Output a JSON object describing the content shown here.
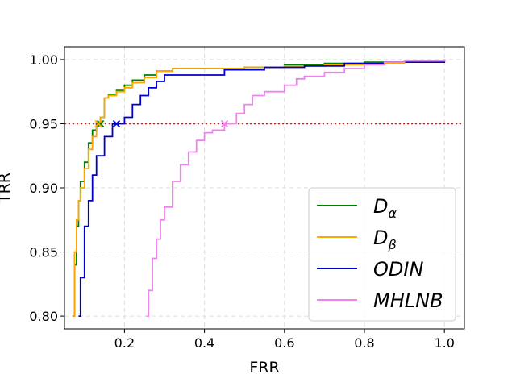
{
  "chart_data": {
    "type": "line",
    "title": "",
    "xlabel": "FRR",
    "ylabel": "TRR",
    "xlim": [
      0.05,
      1.05
    ],
    "ylim": [
      0.79,
      1.01
    ],
    "xticks": [
      0.2,
      0.4,
      0.6,
      0.8,
      1.0
    ],
    "xtick_labels": [
      "0.2",
      "0.4",
      "0.6",
      "0.8",
      "1.0"
    ],
    "yticks": [
      0.8,
      0.85,
      0.9,
      0.95,
      1.0
    ],
    "ytick_labels": [
      "0.80",
      "0.85",
      "0.90",
      "0.95",
      "1.00"
    ],
    "grid": true,
    "legend_position": "lower-right",
    "threshold": {
      "y": 0.95,
      "color": "#ff0000",
      "style": "dotted"
    },
    "series": [
      {
        "name": "D",
        "subscript": "α",
        "color": "#008000",
        "marker": [
          0.14,
          0.95
        ],
        "x": [
          0.07,
          0.075,
          0.08,
          0.085,
          0.09,
          0.1,
          0.11,
          0.12,
          0.13,
          0.14,
          0.15,
          0.16,
          0.18,
          0.2,
          0.22,
          0.25,
          0.28,
          0.32,
          0.4,
          0.5,
          0.6,
          0.7,
          0.8,
          0.9,
          1.0
        ],
        "y": [
          0.8,
          0.84,
          0.87,
          0.89,
          0.905,
          0.92,
          0.935,
          0.945,
          0.95,
          0.955,
          0.97,
          0.973,
          0.976,
          0.98,
          0.984,
          0.988,
          0.991,
          0.993,
          0.993,
          0.994,
          0.996,
          0.997,
          0.998,
          0.999,
          1.0
        ]
      },
      {
        "name": "D",
        "subscript": "β",
        "color": "#ffa500",
        "marker": [
          0.135,
          0.95
        ],
        "x": [
          0.07,
          0.075,
          0.08,
          0.085,
          0.09,
          0.1,
          0.11,
          0.12,
          0.13,
          0.14,
          0.15,
          0.16,
          0.18,
          0.2,
          0.22,
          0.25,
          0.28,
          0.32,
          0.4,
          0.5,
          0.6,
          0.7,
          0.8,
          0.9,
          1.0
        ],
        "y": [
          0.8,
          0.85,
          0.875,
          0.89,
          0.9,
          0.915,
          0.93,
          0.94,
          0.948,
          0.955,
          0.97,
          0.972,
          0.975,
          0.978,
          0.982,
          0.986,
          0.991,
          0.993,
          0.993,
          0.994,
          0.995,
          0.996,
          0.997,
          0.999,
          1.0
        ]
      },
      {
        "name": "ODIN",
        "subscript": "",
        "color": "#0000cd",
        "marker": [
          0.18,
          0.95
        ],
        "x": [
          0.085,
          0.09,
          0.1,
          0.11,
          0.12,
          0.13,
          0.15,
          0.17,
          0.2,
          0.22,
          0.24,
          0.26,
          0.28,
          0.3,
          0.38,
          0.45,
          0.55,
          0.65,
          0.75,
          0.85,
          1.0
        ],
        "y": [
          0.8,
          0.83,
          0.87,
          0.89,
          0.91,
          0.925,
          0.94,
          0.95,
          0.955,
          0.965,
          0.972,
          0.978,
          0.983,
          0.988,
          0.988,
          0.992,
          0.994,
          0.995,
          0.997,
          0.998,
          1.0
        ]
      },
      {
        "name": "MHLNB",
        "subscript": "",
        "color": "#ee82ee",
        "marker": [
          0.45,
          0.95
        ],
        "x": [
          0.255,
          0.26,
          0.27,
          0.28,
          0.29,
          0.3,
          0.32,
          0.34,
          0.36,
          0.38,
          0.4,
          0.42,
          0.45,
          0.48,
          0.5,
          0.52,
          0.55,
          0.6,
          0.63,
          0.65,
          0.7,
          0.75,
          0.8,
          0.85,
          0.9,
          1.0
        ],
        "y": [
          0.8,
          0.82,
          0.845,
          0.86,
          0.875,
          0.885,
          0.905,
          0.918,
          0.928,
          0.937,
          0.943,
          0.945,
          0.95,
          0.958,
          0.965,
          0.972,
          0.975,
          0.98,
          0.985,
          0.987,
          0.99,
          0.993,
          0.996,
          0.998,
          0.999,
          1.0
        ]
      }
    ]
  }
}
